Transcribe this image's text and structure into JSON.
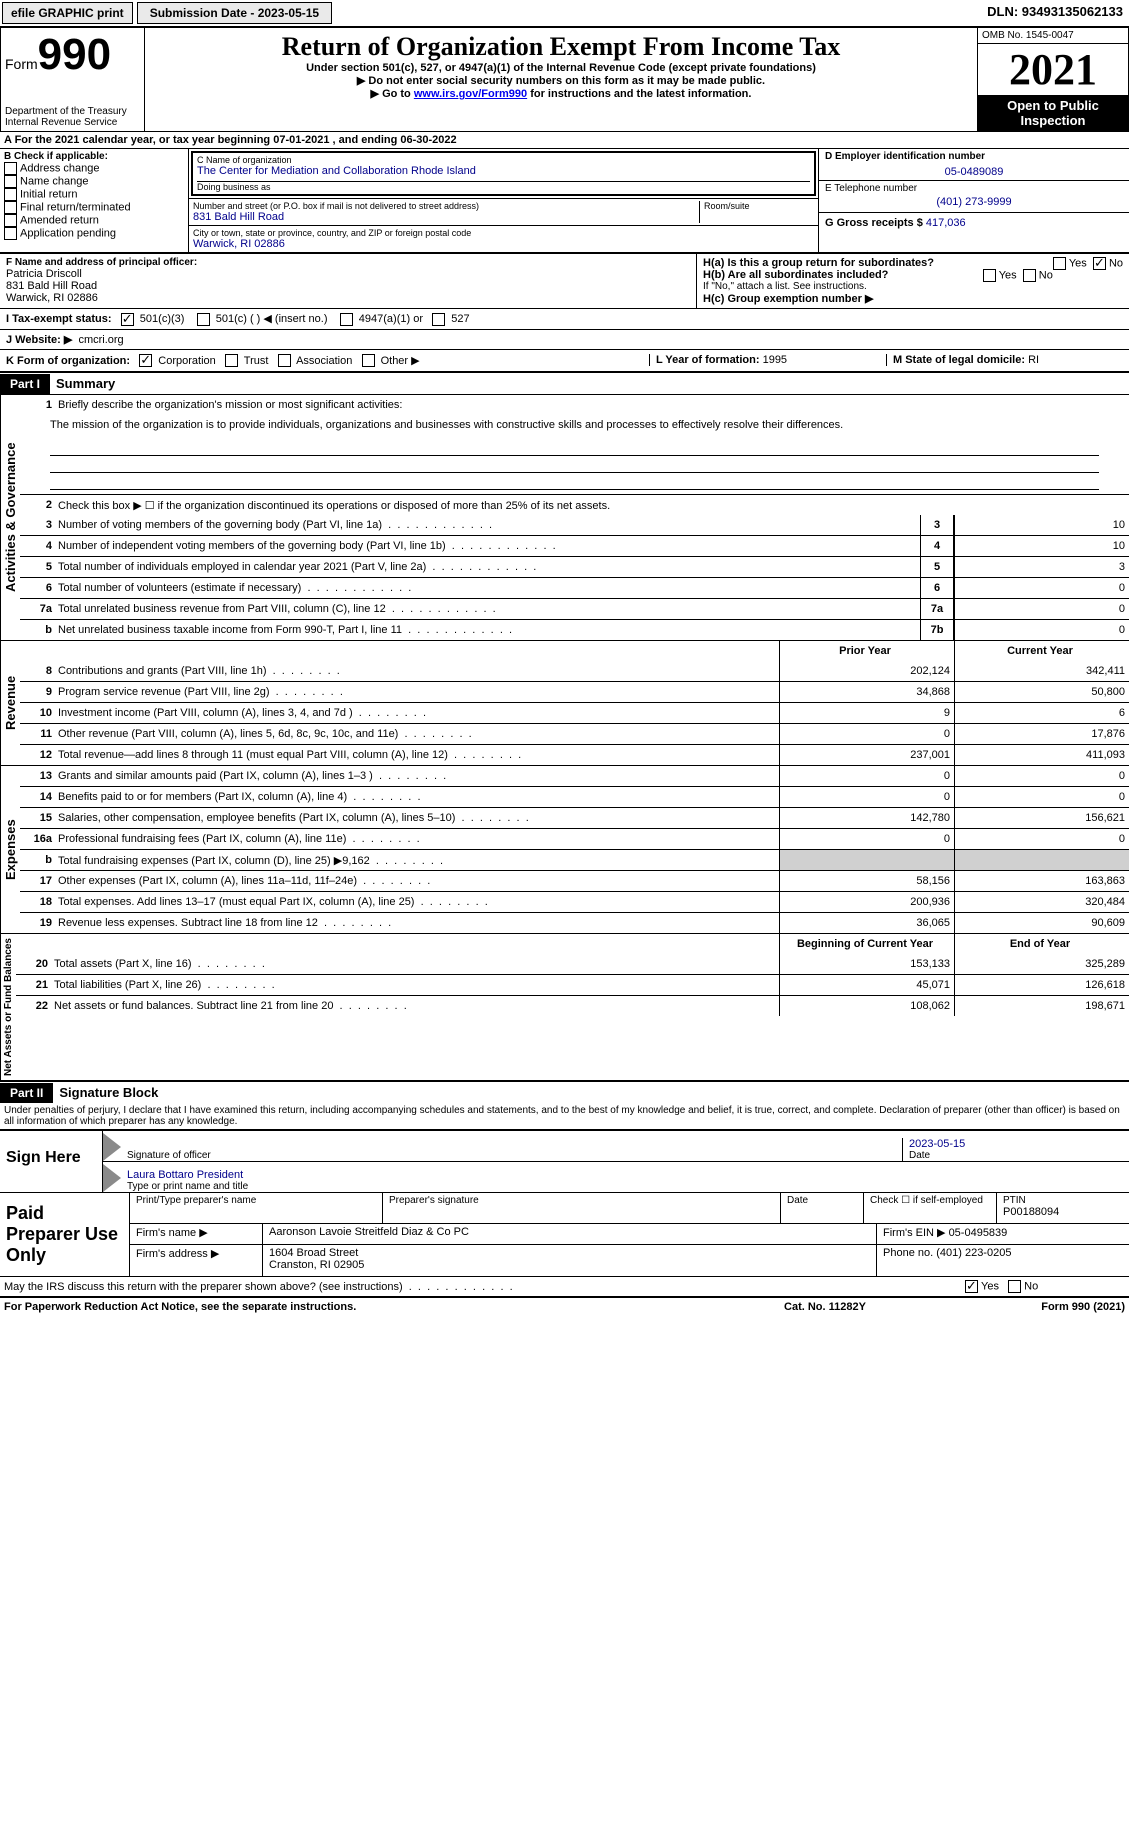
{
  "colors": {
    "text_primary": "#00008b",
    "black": "#000000",
    "grey_shade": "#d0d0d0",
    "btn_bg": "#eaeaea",
    "arrow_grey": "#8a8a8a"
  },
  "topbar": {
    "efile_label": "efile GRAPHIC print",
    "submission_label": "Submission Date - 2023-05-15",
    "dln_label": "DLN: 93493135062133"
  },
  "header": {
    "form_label": "Form",
    "form_number": "990",
    "dept": "Department of the Treasury\nInternal Revenue Service",
    "title": "Return of Organization Exempt From Income Tax",
    "subtitle": "Under section 501(c), 527, or 4947(a)(1) of the Internal Revenue Code (except private foundations)",
    "note1_prefix": "▶ Do not enter social security numbers on this form as it may be made public.",
    "note2_prefix": "▶ Go to ",
    "note2_link": "www.irs.gov/Form990",
    "note2_suffix": " for instructions and the latest information.",
    "omb": "OMB No. 1545-0047",
    "year": "2021",
    "inspect": "Open to Public Inspection"
  },
  "sectionA": {
    "text_prefix": "A For the 2021 calendar year, or tax year beginning ",
    "begin": "07-01-2021",
    "mid": "   , and ending ",
    "end": "06-30-2022"
  },
  "B": {
    "label": "B Check if applicable:",
    "items": [
      "Address change",
      "Name change",
      "Initial return",
      "Final return/terminated",
      "Amended return",
      "Application pending"
    ]
  },
  "C": {
    "name_label": "C Name of organization",
    "name": "The Center for Mediation and Collaboration Rhode Island",
    "dba_label": "Doing business as",
    "dba": "",
    "addr_label": "Number and street (or P.O. box if mail is not delivered to street address)",
    "room_label": "Room/suite",
    "addr": "831 Bald Hill Road",
    "city_label": "City or town, state or province, country, and ZIP or foreign postal code",
    "city": "Warwick, RI  02886"
  },
  "D": {
    "label": "D Employer identification number",
    "value": "05-0489089"
  },
  "E": {
    "label": "E Telephone number",
    "value": "(401) 273-9999"
  },
  "G": {
    "label": "G Gross receipts $",
    "value": "417,036"
  },
  "F": {
    "label": "F  Name and address of principal officer:",
    "name": "Patricia Driscoll",
    "addr1": "831 Bald Hill Road",
    "addr2": "Warwick, RI  02886"
  },
  "H": {
    "a_label": "H(a)  Is this a group return for subordinates?",
    "a_yes": "Yes",
    "a_no": "No",
    "b_label": "H(b)  Are all subordinates included?",
    "b_note": "If \"No,\" attach a list. See instructions.",
    "c_label": "H(c)  Group exemption number ▶"
  },
  "I": {
    "label": "I   Tax-exempt status:",
    "opts": [
      "501(c)(3)",
      "501(c) (   ) ◀ (insert no.)",
      "4947(a)(1) or",
      "527"
    ]
  },
  "J": {
    "label": "J   Website: ▶",
    "value": "cmcri.org"
  },
  "K": {
    "label": "K Form of organization:",
    "opts": [
      "Corporation",
      "Trust",
      "Association",
      "Other ▶"
    ]
  },
  "L": {
    "label": "L Year of formation:",
    "value": "1995"
  },
  "M": {
    "label": "M State of legal domicile:",
    "value": "RI"
  },
  "part1": {
    "hdr": "Part I",
    "title": "Summary",
    "line1_label": "Briefly describe the organization's mission or most significant activities:",
    "mission": "The mission of the organization is to provide individuals, organizations and businesses with constructive skills and processes to effectively resolve their differences.",
    "line2_label": "Check this box ▶ ☐  if the organization discontinued its operations or disposed of more than 25% of its net assets.",
    "side_ag": "Activities & Governance",
    "side_rev": "Revenue",
    "side_exp": "Expenses",
    "side_net": "Net Assets or Fund Balances",
    "col_prior": "Prior Year",
    "col_curr": "Current Year",
    "col_begin": "Beginning of Current Year",
    "col_end": "End of Year",
    "ag_lines": [
      {
        "n": "3",
        "label": "Number of voting members of the governing body (Part VI, line 1a)",
        "box": "3",
        "val": "10"
      },
      {
        "n": "4",
        "label": "Number of independent voting members of the governing body (Part VI, line 1b)",
        "box": "4",
        "val": "10"
      },
      {
        "n": "5",
        "label": "Total number of individuals employed in calendar year 2021 (Part V, line 2a)",
        "box": "5",
        "val": "3"
      },
      {
        "n": "6",
        "label": "Total number of volunteers (estimate if necessary)",
        "box": "6",
        "val": "0"
      },
      {
        "n": "7a",
        "label": "Total unrelated business revenue from Part VIII, column (C), line 12",
        "box": "7a",
        "val": "0"
      },
      {
        "n": "b",
        "label": "Net unrelated business taxable income from Form 990-T, Part I, line 11",
        "box": "7b",
        "val": "0"
      }
    ],
    "rev_lines": [
      {
        "n": "8",
        "label": "Contributions and grants (Part VIII, line 1h)",
        "prior": "202,124",
        "curr": "342,411"
      },
      {
        "n": "9",
        "label": "Program service revenue (Part VIII, line 2g)",
        "prior": "34,868",
        "curr": "50,800"
      },
      {
        "n": "10",
        "label": "Investment income (Part VIII, column (A), lines 3, 4, and 7d )",
        "prior": "9",
        "curr": "6"
      },
      {
        "n": "11",
        "label": "Other revenue (Part VIII, column (A), lines 5, 6d, 8c, 9c, 10c, and 11e)",
        "prior": "0",
        "curr": "17,876"
      },
      {
        "n": "12",
        "label": "Total revenue—add lines 8 through 11 (must equal Part VIII, column (A), line 12)",
        "prior": "237,001",
        "curr": "411,093"
      }
    ],
    "exp_lines": [
      {
        "n": "13",
        "label": "Grants and similar amounts paid (Part IX, column (A), lines 1–3 )",
        "prior": "0",
        "curr": "0"
      },
      {
        "n": "14",
        "label": "Benefits paid to or for members (Part IX, column (A), line 4)",
        "prior": "0",
        "curr": "0"
      },
      {
        "n": "15",
        "label": "Salaries, other compensation, employee benefits (Part IX, column (A), lines 5–10)",
        "prior": "142,780",
        "curr": "156,621"
      },
      {
        "n": "16a",
        "label": "Professional fundraising fees (Part IX, column (A), line 11e)",
        "prior": "0",
        "curr": "0"
      },
      {
        "n": "b",
        "label": "Total fundraising expenses (Part IX, column (D), line 25) ▶9,162",
        "prior": "",
        "curr": "",
        "grey": true
      },
      {
        "n": "17",
        "label": "Other expenses (Part IX, column (A), lines 11a–11d, 11f–24e)",
        "prior": "58,156",
        "curr": "163,863"
      },
      {
        "n": "18",
        "label": "Total expenses. Add lines 13–17 (must equal Part IX, column (A), line 25)",
        "prior": "200,936",
        "curr": "320,484"
      },
      {
        "n": "19",
        "label": "Revenue less expenses. Subtract line 18 from line 12",
        "prior": "36,065",
        "curr": "90,609"
      }
    ],
    "net_lines": [
      {
        "n": "20",
        "label": "Total assets (Part X, line 16)",
        "prior": "153,133",
        "curr": "325,289"
      },
      {
        "n": "21",
        "label": "Total liabilities (Part X, line 26)",
        "prior": "45,071",
        "curr": "126,618"
      },
      {
        "n": "22",
        "label": "Net assets or fund balances. Subtract line 21 from line 20",
        "prior": "108,062",
        "curr": "198,671"
      }
    ]
  },
  "part2": {
    "hdr": "Part II",
    "title": "Signature Block",
    "decl": "Under penalties of perjury, I declare that I have examined this return, including accompanying schedules and statements, and to the best of my knowledge and belief, it is true, correct, and complete. Declaration of preparer (other than officer) is based on all information of which preparer has any knowledge.",
    "sign_here": "Sign Here",
    "sig_officer": "Signature of officer",
    "sig_date": "2023-05-15",
    "date_lbl": "Date",
    "name_title": "Laura Bottaro  President",
    "type_print": "Type or print name and title",
    "paid_prep": "Paid Preparer Use Only",
    "pt_name_lbl": "Print/Type preparer's name",
    "pt_sig_lbl": "Preparer's signature",
    "pt_date_lbl": "Date",
    "pt_check": "Check ☐ if self-employed",
    "pt_ptin_lbl": "PTIN",
    "pt_ptin": "P00188094",
    "firm_name_lbl": "Firm's name    ▶",
    "firm_name": "Aaronson Lavoie Streitfeld Diaz & Co PC",
    "firm_ein_lbl": "Firm's EIN ▶",
    "firm_ein": "05-0495839",
    "firm_addr_lbl": "Firm's address ▶",
    "firm_addr": "1604 Broad Street\nCranston, RI  02905",
    "phone_lbl": "Phone no.",
    "phone": "(401) 223-0205",
    "discuss": "May the IRS discuss this return with the preparer shown above? (see instructions)",
    "discuss_yes": "Yes",
    "discuss_no": "No"
  },
  "footer": {
    "pra": "For Paperwork Reduction Act Notice, see the separate instructions.",
    "cat": "Cat. No. 11282Y",
    "form": "Form 990 (2021)"
  }
}
